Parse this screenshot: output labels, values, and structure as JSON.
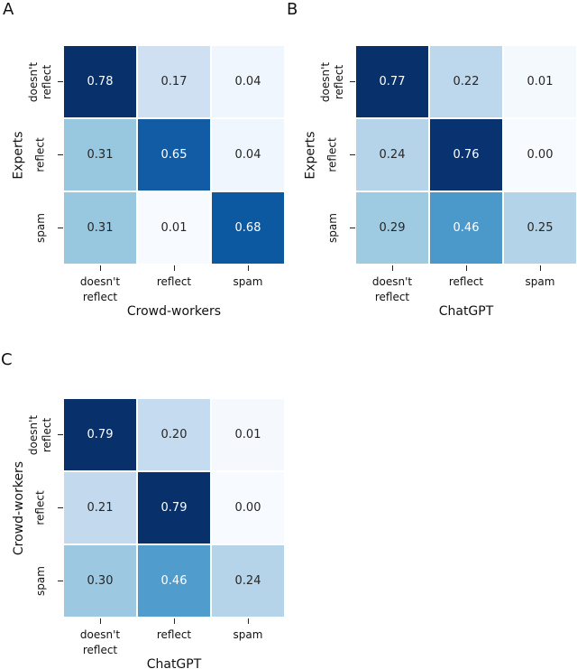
{
  "figure": {
    "background": "#ffffff",
    "colormap": "Blues",
    "annot_color_light": "#ffffff",
    "annot_color_dark": "#262626"
  },
  "panels": [
    {
      "letter": "A",
      "ylabel": "Experts",
      "xlabel": "Crowd-workers",
      "yticks": [
        "doesn't\nreflect",
        "reflect",
        "spam"
      ],
      "xticks": [
        "doesn't\nreflect",
        "reflect",
        "spam"
      ],
      "cells": [
        {
          "v": "0.78",
          "bg": "#08306b",
          "fg": "#ffffff"
        },
        {
          "v": "0.17",
          "bg": "#cee0f2",
          "fg": "#262626"
        },
        {
          "v": "0.04",
          "bg": "#eff6fd",
          "fg": "#262626"
        },
        {
          "v": "0.31",
          "bg": "#98c7e0",
          "fg": "#262626"
        },
        {
          "v": "0.65",
          "bg": "#115ca5",
          "fg": "#ffffff"
        },
        {
          "v": "0.04",
          "bg": "#eff6fd",
          "fg": "#262626"
        },
        {
          "v": "0.31",
          "bg": "#98c7e0",
          "fg": "#262626"
        },
        {
          "v": "0.01",
          "bg": "#f7fbff",
          "fg": "#262626"
        },
        {
          "v": "0.68",
          "bg": "#0c58a1",
          "fg": "#ffffff"
        }
      ]
    },
    {
      "letter": "B",
      "ylabel": "Experts",
      "xlabel": "ChatGPT",
      "yticks": [
        "doesn't\nreflect",
        "reflect",
        "spam"
      ],
      "xticks": [
        "doesn't\nreflect",
        "reflect",
        "spam"
      ],
      "cells": [
        {
          "v": "0.77",
          "bg": "#08306b",
          "fg": "#ffffff"
        },
        {
          "v": "0.22",
          "bg": "#bdd7ec",
          "fg": "#262626"
        },
        {
          "v": "0.01",
          "bg": "#f4f9fe",
          "fg": "#262626"
        },
        {
          "v": "0.24",
          "bg": "#b5d4e9",
          "fg": "#262626"
        },
        {
          "v": "0.76",
          "bg": "#083370",
          "fg": "#ffffff"
        },
        {
          "v": "0.00",
          "bg": "#f7fbff",
          "fg": "#262626"
        },
        {
          "v": "0.29",
          "bg": "#9fcbe2",
          "fg": "#262626"
        },
        {
          "v": "0.46",
          "bg": "#4b98ca",
          "fg": "#ffffff"
        },
        {
          "v": "0.25",
          "bg": "#b2d3e8",
          "fg": "#262626"
        }
      ]
    },
    {
      "letter": "C",
      "ylabel": "Crowd-workers",
      "xlabel": "ChatGPT",
      "yticks": [
        "doesn't\nreflect",
        "reflect",
        "spam"
      ],
      "xticks": [
        "doesn't\nreflect",
        "reflect",
        "spam"
      ],
      "cells": [
        {
          "v": "0.79",
          "bg": "#08306b",
          "fg": "#ffffff"
        },
        {
          "v": "0.20",
          "bg": "#c5dbef",
          "fg": "#262626"
        },
        {
          "v": "0.01",
          "bg": "#f5f9fe",
          "fg": "#262626"
        },
        {
          "v": "0.21",
          "bg": "#c3daee",
          "fg": "#262626"
        },
        {
          "v": "0.79",
          "bg": "#08306b",
          "fg": "#ffffff"
        },
        {
          "v": "0.00",
          "bg": "#f7fbff",
          "fg": "#262626"
        },
        {
          "v": "0.30",
          "bg": "#9cc9e1",
          "fg": "#262626"
        },
        {
          "v": "0.46",
          "bg": "#509ccc",
          "fg": "#ffffff"
        },
        {
          "v": "0.24",
          "bg": "#b5d4e9",
          "fg": "#262626"
        }
      ]
    }
  ],
  "chart_data": [
    {
      "type": "heatmap",
      "panel": "A",
      "xlabel": "Crowd-workers",
      "ylabel": "Experts",
      "x_categories": [
        "doesn't reflect",
        "reflect",
        "spam"
      ],
      "y_categories": [
        "doesn't reflect",
        "reflect",
        "spam"
      ],
      "values": [
        [
          0.78,
          0.17,
          0.04
        ],
        [
          0.31,
          0.65,
          0.04
        ],
        [
          0.31,
          0.01,
          0.68
        ]
      ],
      "colormap": "Blues",
      "annotations": true,
      "legend": false
    },
    {
      "type": "heatmap",
      "panel": "B",
      "xlabel": "ChatGPT",
      "ylabel": "Experts",
      "x_categories": [
        "doesn't reflect",
        "reflect",
        "spam"
      ],
      "y_categories": [
        "doesn't reflect",
        "reflect",
        "spam"
      ],
      "values": [
        [
          0.77,
          0.22,
          0.01
        ],
        [
          0.24,
          0.76,
          0.0
        ],
        [
          0.29,
          0.46,
          0.25
        ]
      ],
      "colormap": "Blues",
      "annotations": true,
      "legend": false
    },
    {
      "type": "heatmap",
      "panel": "C",
      "xlabel": "ChatGPT",
      "ylabel": "Crowd-workers",
      "x_categories": [
        "doesn't reflect",
        "reflect",
        "spam"
      ],
      "y_categories": [
        "doesn't reflect",
        "reflect",
        "spam"
      ],
      "values": [
        [
          0.79,
          0.2,
          0.01
        ],
        [
          0.21,
          0.79,
          0.0
        ],
        [
          0.3,
          0.46,
          0.24
        ]
      ],
      "colormap": "Blues",
      "annotations": true,
      "legend": false
    }
  ]
}
